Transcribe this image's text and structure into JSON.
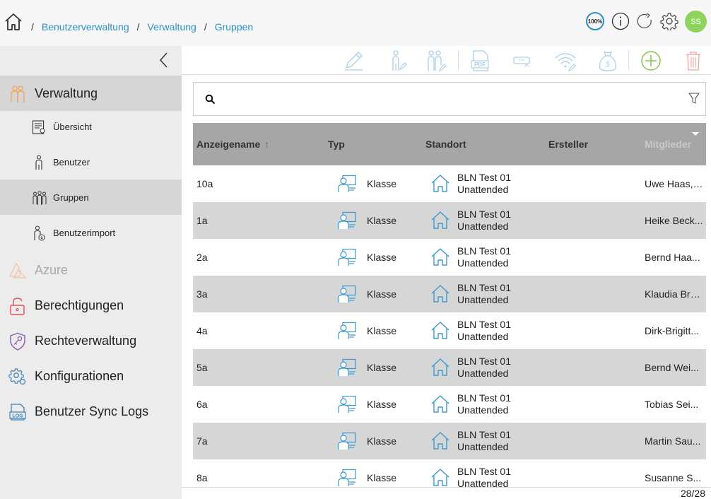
{
  "breadcrumb": {
    "items": [
      "Benutzerverwaltung",
      "Verwaltung",
      "Gruppen"
    ],
    "separator": "/"
  },
  "header": {
    "zoom": "100%",
    "avatar_initials": "SS",
    "icons": [
      "home-icon",
      "zoom-icon",
      "info-icon",
      "refresh-icon",
      "settings-icon",
      "avatar"
    ]
  },
  "sidebar": {
    "items": [
      {
        "label": "Verwaltung",
        "icon": "group-users-icon",
        "active": true,
        "level": 0
      },
      {
        "label": "Übersicht",
        "icon": "overview-document-icon",
        "active": false,
        "level": 1
      },
      {
        "label": "Benutzer",
        "icon": "user-icon",
        "active": false,
        "level": 1
      },
      {
        "label": "Gruppen",
        "icon": "groups-icon",
        "active": true,
        "level": 1
      },
      {
        "label": "Benutzerimport",
        "icon": "user-import-icon",
        "active": false,
        "level": 1
      },
      {
        "label": "Azure",
        "icon": "azure-icon",
        "active": false,
        "level": 0,
        "disabled": true
      },
      {
        "label": "Berechtigungen",
        "icon": "lock-icon",
        "active": false,
        "level": 0
      },
      {
        "label": "Rechteverwaltung",
        "icon": "shield-key-icon",
        "active": false,
        "level": 0
      },
      {
        "label": "Konfigurationen",
        "icon": "gears-icon",
        "active": false,
        "level": 0
      },
      {
        "label": "Benutzer Sync Logs",
        "icon": "log-icon",
        "active": false,
        "level": 0
      }
    ]
  },
  "toolbar": {
    "icons": [
      "edit-icon",
      "user-edit-icon",
      "users-edit-icon",
      "pdf-icon",
      "password-icon",
      "wifi-edit-icon",
      "money-bag-icon",
      "add-icon",
      "delete-icon"
    ]
  },
  "search": {
    "placeholder": "",
    "value": ""
  },
  "table": {
    "columns": [
      "Anzeigename",
      "Typ",
      "Standort",
      "Ersteller",
      "Mitglieder"
    ],
    "sorted_column": "Anzeigename",
    "sort_direction": "asc",
    "rows": [
      {
        "name": "10a",
        "type": "Klasse",
        "location_line1": "BLN Test 01",
        "location_line2": "Unattended",
        "creator": "",
        "members": "Uwe Haas, ..."
      },
      {
        "name": "1a",
        "type": "Klasse",
        "location_line1": "BLN Test 01",
        "location_line2": "Unattended",
        "creator": "",
        "members": "Heike Beck..."
      },
      {
        "name": "2a",
        "type": "Klasse",
        "location_line1": "BLN Test 01",
        "location_line2": "Unattended",
        "creator": "",
        "members": "Bernd Haa..."
      },
      {
        "name": "3a",
        "type": "Klasse",
        "location_line1": "BLN Test 01",
        "location_line2": "Unattended",
        "creator": "",
        "members": "Klaudia Bra..."
      },
      {
        "name": "4a",
        "type": "Klasse",
        "location_line1": "BLN Test 01",
        "location_line2": "Unattended",
        "creator": "",
        "members": "Dirk-Brigitt..."
      },
      {
        "name": "5a",
        "type": "Klasse",
        "location_line1": "BLN Test 01",
        "location_line2": "Unattended",
        "creator": "",
        "members": "Bernd Wei..."
      },
      {
        "name": "6a",
        "type": "Klasse",
        "location_line1": "BLN Test 01",
        "location_line2": "Unattended",
        "creator": "",
        "members": "Tobias Sei..."
      },
      {
        "name": "7a",
        "type": "Klasse",
        "location_line1": "BLN Test 01",
        "location_line2": "Unattended",
        "creator": "",
        "members": "Martin Sau..."
      },
      {
        "name": "8a",
        "type": "Klasse",
        "location_line1": "BLN Test 01",
        "location_line2": "Unattended",
        "creator": "",
        "members": "Susanne S..."
      }
    ]
  },
  "pager": {
    "text": "28/28"
  },
  "colors": {
    "link": "#2f8fc7",
    "accent_green": "#8fd35f",
    "sidebar_bg": "#ececec",
    "sidebar_active": "#d6d6d6",
    "table_header": "#a6a6a6",
    "row_alt": "#d6d6d6",
    "icon_orange": "#f0b070",
    "icon_blue": "#2f8fc7",
    "delete_red": "#f2a0a0"
  }
}
